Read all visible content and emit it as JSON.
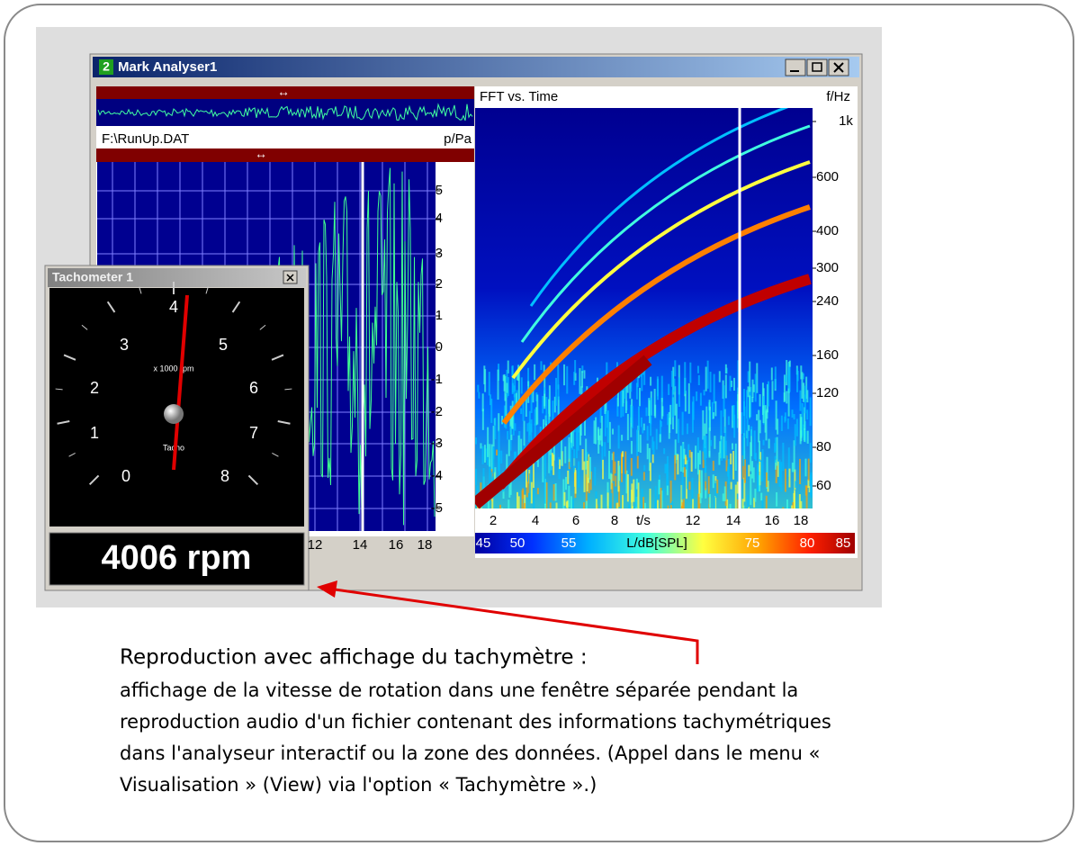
{
  "window": {
    "badge": "2",
    "title": "Mark Analyser1"
  },
  "waveform": {
    "file": "F:\\RunUp.DAT",
    "unit": "p/Pa",
    "y_ticks": [
      "5",
      "4",
      "3",
      "2",
      "1",
      "0",
      "-1",
      "-2",
      "-3",
      "-4",
      "-5"
    ],
    "x_ticks": [
      "12",
      "14",
      "16",
      "18"
    ]
  },
  "spectrogram": {
    "title": "FFT vs. Time",
    "unit": "f/Hz",
    "y_ticks": [
      "1k",
      "600",
      "400",
      "300",
      "240",
      "160",
      "120",
      "80",
      "60"
    ],
    "x_ticks": [
      "2",
      "4",
      "6",
      "8",
      "t/s",
      "12",
      "14",
      "16",
      "18"
    ],
    "colorbar": [
      "45",
      "50",
      "55",
      "L/dB[SPL]",
      "75",
      "80",
      "85"
    ]
  },
  "tachometer": {
    "title": "Tachometer 1",
    "dial": [
      "0",
      "1",
      "2",
      "3",
      "4",
      "5",
      "6",
      "7",
      "8"
    ],
    "scale": "x 1000 rpm",
    "name": "Tacho",
    "readout": "4006 rpm"
  },
  "caption": {
    "heading": "Reproduction avec affichage du tachymètre :",
    "lines": [
      "affichage de la vitesse de rotation dans une fenêtre séparée pendant la",
      "reproduction audio d'un fichier contenant des informations tachymétriques",
      "dans l'analyseur interactif ou la zone des données. (Appel dans le menu «",
      "Visualisation » (View) via l'option « Tachymètre ».)"
    ]
  }
}
